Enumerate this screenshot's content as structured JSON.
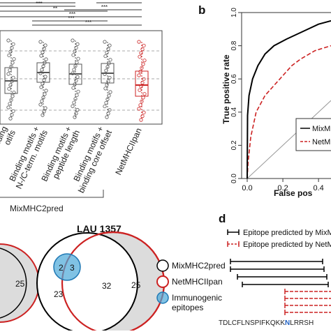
{
  "panels": {
    "b": "b",
    "d": "d"
  },
  "panel_a": {
    "significance": [
      "***",
      "***",
      "**",
      "***",
      "***",
      "***",
      "***",
      "***",
      "***"
    ],
    "categories": [
      "Binding motifs",
      "Binding motifs + N-/C-term. motifs",
      "Binding motifs + peptide length",
      "Binding motifs + binding core offset",
      "NetMHCIIpan"
    ],
    "tick_lines": [
      [
        "inding",
        "otifs"
      ],
      [
        "Binding motifs +",
        "N-/C-term. motifs"
      ],
      [
        "Binding motifs +",
        "peptide length"
      ],
      [
        "Binding motifs +",
        "binding core offset"
      ],
      [
        "NetMHCIIpan"
      ]
    ],
    "group_label": "MixMHC2pred",
    "colors": {
      "mixmhc2pred": "#555555",
      "netmhciipan": "#cc2222"
    }
  },
  "chart_data": {
    "type": "line",
    "title": "",
    "xlabel": "False positive rate",
    "ylabel": "True positive rate",
    "xlim": [
      0,
      1
    ],
    "ylim": [
      0,
      1
    ],
    "x_ticks": [
      "0.0",
      "0.2",
      "0.4"
    ],
    "y_ticks": [
      "0.0",
      "0.2",
      "0.4",
      "0.6",
      "0.8",
      "1.0"
    ],
    "visible_xlabel": "False pos",
    "legend": [
      "MixMHC2pred",
      "NetMHCIIpan"
    ],
    "visible_legend": [
      "MixMH",
      "NetMH"
    ],
    "series": [
      {
        "name": "MixMHC2pred",
        "color": "#000000",
        "x": [
          0,
          0.002,
          0.01,
          0.03,
          0.06,
          0.1,
          0.15,
          0.22,
          0.3,
          0.4,
          0.47
        ],
        "y": [
          0,
          0.38,
          0.5,
          0.6,
          0.68,
          0.75,
          0.8,
          0.84,
          0.88,
          0.93,
          0.95
        ]
      },
      {
        "name": "NetMHCIIpan",
        "color": "#cc2222",
        "x": [
          0,
          0.005,
          0.02,
          0.05,
          0.1,
          0.15,
          0.2,
          0.25,
          0.3,
          0.38,
          0.47
        ],
        "y": [
          0,
          0.1,
          0.25,
          0.4,
          0.5,
          0.56,
          0.62,
          0.68,
          0.72,
          0.77,
          0.8
        ]
      }
    ]
  },
  "venn_left": {
    "count": "25"
  },
  "venn_main": {
    "title": "LAU 1357",
    "counts": {
      "mix_only": "23",
      "overlap": "32",
      "net_only": "25",
      "immuno_mix": "2",
      "immuno_both": "3"
    },
    "legend": [
      "MixMHC2pred",
      "NetMHCIIpan",
      "Immunogenic epitopes"
    ],
    "legend_lines": [
      [
        "MixMHC2pred"
      ],
      [
        "NetMHCIIpan"
      ],
      [
        "Immunogenic",
        "epitopes"
      ]
    ],
    "colors": {
      "mix": "#000000",
      "net": "#cc2222",
      "immuno": "#4aa8d8"
    }
  },
  "panel_d": {
    "legend": [
      "Epitope predicted by MixM",
      "Epitope predicted by NetM"
    ],
    "sequence_left": "TDLCFLNSPIFKQKK",
    "sequence_highlight": "N",
    "sequence_right": "LRRSH",
    "colors": {
      "highlight": "#2060c0"
    }
  }
}
